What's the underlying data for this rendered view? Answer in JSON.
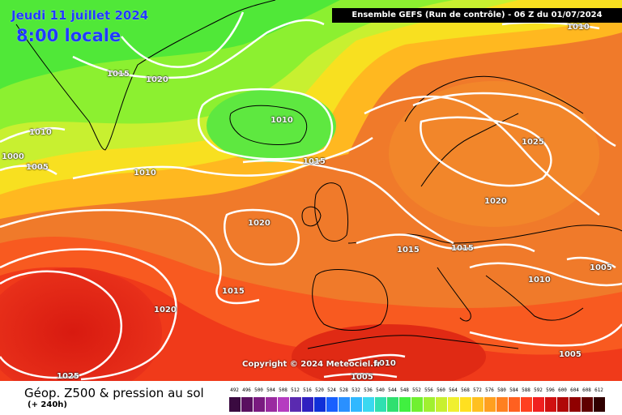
{
  "title": {
    "date": "Jeudi 11 juillet 2024",
    "time": "8:00 locale"
  },
  "header": {
    "model": "Ensemble GEFS  (Run de contrôle)  -  06 Z du 01/07/2024"
  },
  "isobars": [
    {
      "label": "1010"
    },
    {
      "label": "1015"
    },
    {
      "label": "1020"
    },
    {
      "label": "1010"
    },
    {
      "label": "1010"
    },
    {
      "label": "1000"
    },
    {
      "label": "1005"
    },
    {
      "label": "1010"
    },
    {
      "label": "1015"
    },
    {
      "label": "1025"
    },
    {
      "label": "1020"
    },
    {
      "label": "1020"
    },
    {
      "label": "1015"
    },
    {
      "label": "1015"
    },
    {
      "label": "1015"
    },
    {
      "label": "1005"
    },
    {
      "label": "1010"
    },
    {
      "label": "1020"
    },
    {
      "label": "1005"
    },
    {
      "label": "1010"
    },
    {
      "label": "1025"
    },
    {
      "label": "1005"
    }
  ],
  "copyright": "Copyright © 2024 Meteociel.fr",
  "footer": {
    "title": "Géop. Z500 & pression au sol",
    "subtitle": "(+ 240h)"
  },
  "legend": {
    "labels": [
      "492",
      "496",
      "500",
      "504",
      "508",
      "512",
      "516",
      "520",
      "524",
      "528",
      "532",
      "536",
      "540",
      "544",
      "548",
      "552",
      "556",
      "560",
      "564",
      "568",
      "572",
      "576",
      "580",
      "584",
      "588",
      "592",
      "596",
      "600",
      "604",
      "608",
      "612"
    ],
    "colors": [
      "#3a0a40",
      "#5a1060",
      "#7a1a80",
      "#9a2aa0",
      "#b53cc0",
      "#5a2ab0",
      "#3020c0",
      "#1030d8",
      "#1860ff",
      "#2a90ff",
      "#30b8ff",
      "#3ad8f0",
      "#30e0b0",
      "#30e070",
      "#40f040",
      "#70f030",
      "#a0f030",
      "#c8f030",
      "#f0f030",
      "#ffe020",
      "#ffc020",
      "#ffa020",
      "#ff8020",
      "#ff6020",
      "#ff4020",
      "#f02020",
      "#d01010",
      "#b00808",
      "#900000",
      "#600000",
      "#300000"
    ]
  }
}
